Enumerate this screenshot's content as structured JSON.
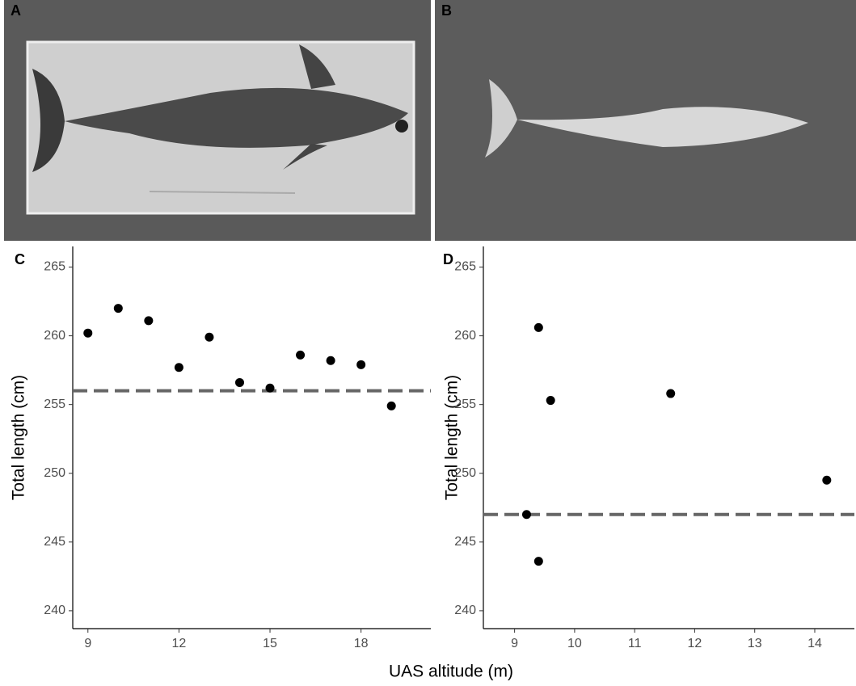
{
  "photo_panels": [
    {
      "label": "A"
    },
    {
      "label": "B"
    }
  ],
  "shared_xlabel": "UAS altitude (m)",
  "chart_data": [
    {
      "type": "scatter",
      "panel_label": "C",
      "ylabel": "Total length (cm)",
      "x": [
        9,
        10,
        11,
        12,
        13,
        14,
        15,
        16,
        17,
        18,
        19
      ],
      "values": [
        260.2,
        262.0,
        261.1,
        257.7,
        259.9,
        256.6,
        256.2,
        258.6,
        258.2,
        257.9,
        254.9
      ],
      "color": "#000000",
      "hline": 256,
      "hline_color": "#666666",
      "xlim": [
        8.5,
        20.3
      ],
      "xticks": [
        9,
        12,
        15,
        18
      ],
      "ylim": [
        238.7,
        266.5
      ],
      "yticks": [
        240,
        245,
        250,
        255,
        260,
        265
      ]
    },
    {
      "type": "scatter",
      "panel_label": "D",
      "ylabel": "Total length (cm)",
      "x": [
        9.2,
        9.4,
        9.6,
        11.6,
        14.2,
        9.4
      ],
      "values": [
        247.0,
        260.6,
        255.3,
        255.8,
        249.5,
        243.6
      ],
      "color": "#000000",
      "hline": 247,
      "hline_color": "#666666",
      "xlim": [
        8.48,
        14.66
      ],
      "xticks": [
        9,
        10,
        11,
        12,
        13,
        14
      ],
      "ylim": [
        238.7,
        266.5
      ],
      "yticks": [
        240,
        245,
        250,
        255,
        260,
        265
      ]
    }
  ]
}
